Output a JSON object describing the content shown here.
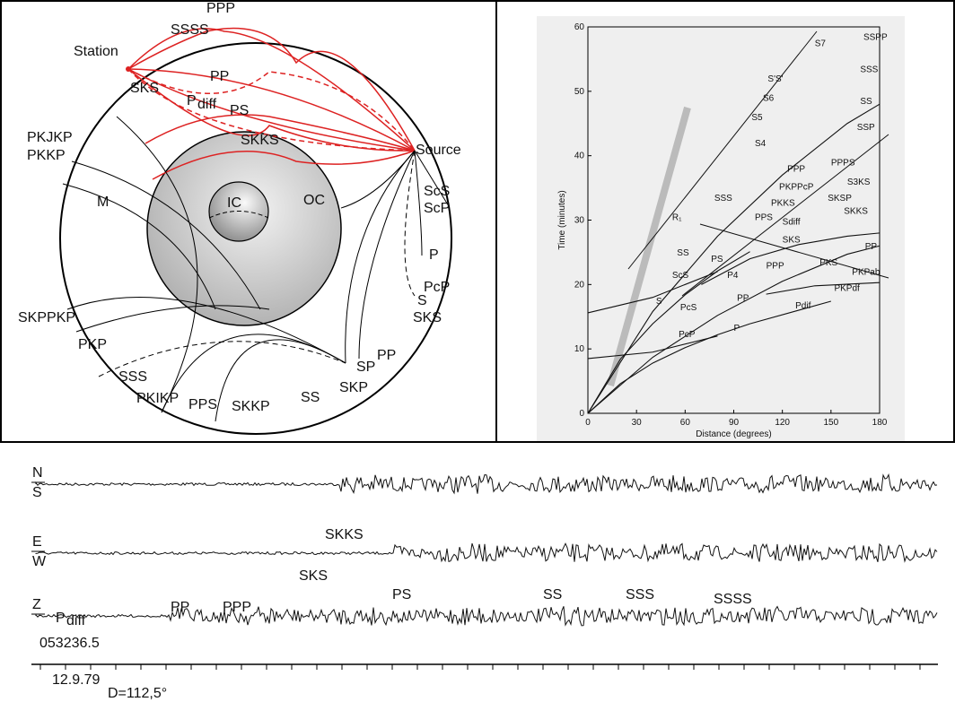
{
  "ray_diagram": {
    "labels": [
      "PPP",
      "SSSS",
      "Station",
      "PP",
      "PS",
      "SKS",
      "SKKS",
      "Source",
      "PKJKP",
      "PKKP",
      "M",
      "IC",
      "OC",
      "ScS",
      "ScP",
      "P",
      "PcP",
      "S",
      "SKS",
      "SKPPKP",
      "PKP",
      "PP",
      "SP",
      "SKP",
      "SSS",
      "PKIKP",
      "PPS",
      "SKKP",
      "SS"
    ],
    "pdiff": {
      "main": "P",
      "sub": "diff"
    }
  },
  "chart_data": {
    "type": "line",
    "xlabel": "Distance (degrees)",
    "ylabel": "Time (minutes)",
    "xlim": [
      0,
      180
    ],
    "ylim": [
      0,
      60
    ],
    "xticks": [
      0,
      30,
      60,
      90,
      120,
      150,
      180
    ],
    "yticks": [
      0,
      10,
      20,
      30,
      40,
      50,
      60
    ],
    "color": "#111111",
    "series": [
      {
        "x": [
          0,
          20,
          40,
          60,
          80,
          100
        ],
        "values": [
          0,
          4.6,
          7.8,
          10.2,
          12.2,
          13.9
        ]
      },
      {
        "x": [
          100,
          130,
          150
        ],
        "values": [
          13.9,
          16,
          17.4
        ]
      },
      {
        "x": [
          0,
          20,
          40,
          60,
          80,
          100
        ],
        "values": [
          0,
          8.4,
          13.9,
          18.4,
          22.1,
          25.1
        ]
      },
      {
        "x": [
          0,
          40,
          80,
          120,
          160,
          180
        ],
        "values": [
          0,
          8.7,
          15.2,
          20.5,
          24.7,
          26
        ]
      },
      {
        "x": [
          0,
          40,
          80,
          120,
          160,
          180
        ],
        "values": [
          0,
          15.8,
          27.5,
          37,
          45,
          48
        ]
      },
      {
        "x": [
          110,
          140,
          180
        ],
        "values": [
          18.5,
          19.8,
          20.3
        ]
      },
      {
        "x": [
          70,
          100,
          130,
          160,
          180
        ],
        "values": [
          20,
          24,
          26.2,
          27.5,
          28
        ]
      },
      {
        "x": [
          0,
          40,
          80
        ],
        "values": [
          15.6,
          18,
          22
        ]
      },
      {
        "x": [
          0,
          40,
          80
        ],
        "values": [
          8.5,
          9.5,
          12
        ]
      }
    ],
    "annotations": [
      "S7",
      "SSPP",
      "SSS",
      "S'S'",
      "S6",
      "SS",
      "S5",
      "SSP",
      "S4",
      "PPPS",
      "PPP",
      "S3KS",
      "SSS",
      "PKPPcP",
      "SKSP",
      "PKKS",
      "SKKS",
      "PPS",
      "R₁",
      "Sdiff",
      "SKS",
      "PP",
      "SS",
      "PS",
      "PKS",
      "PPP",
      "ScS",
      "P4",
      "PKPab",
      "PKPdf",
      "S",
      "PcS",
      "PP",
      "Pdif",
      "PcP",
      "P"
    ]
  },
  "seismogram": {
    "traces": [
      {
        "top": "N",
        "bottom": "S"
      },
      {
        "top": "E",
        "bottom": "W"
      },
      {
        "top": "Z"
      }
    ],
    "phases": [
      "SKKS",
      "SKS",
      "PS",
      "SS",
      "SSS",
      "SSSS",
      "PP",
      "PPP"
    ],
    "pdiff": {
      "main": "P",
      "sub": "diff"
    },
    "time": "053236.5",
    "date": "12.9.79",
    "distance": "D=112,5°"
  }
}
